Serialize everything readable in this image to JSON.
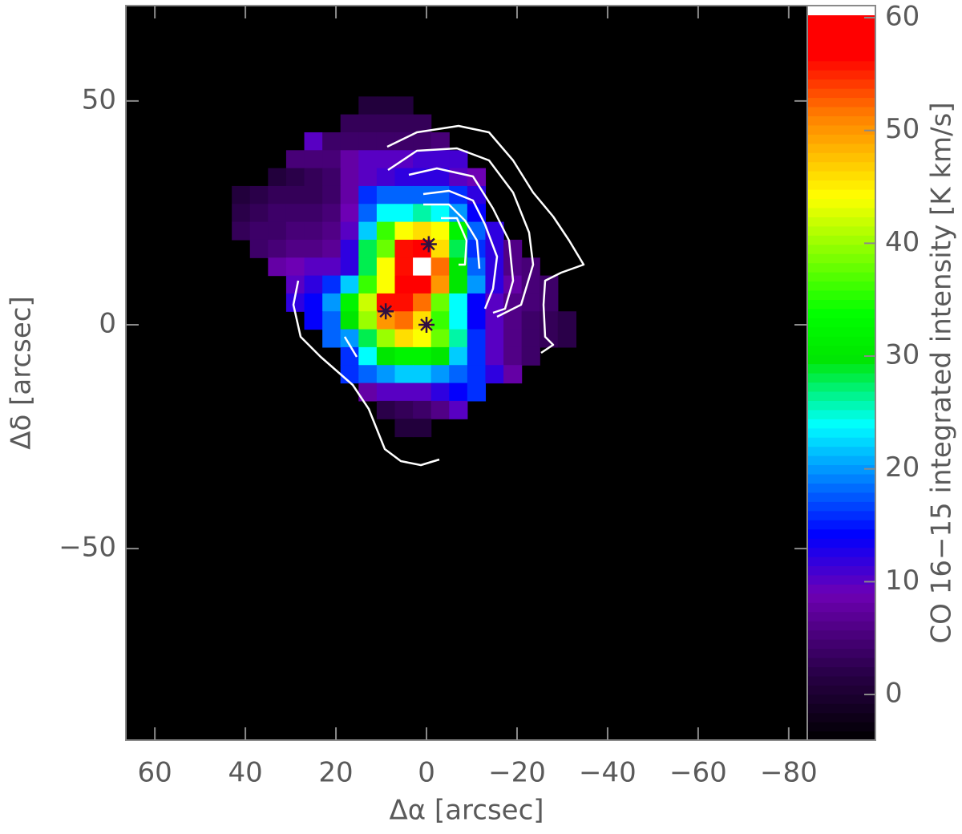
{
  "chart_data": {
    "type": "heatmap",
    "xlabel": "Δα [arcsec]",
    "ylabel": "Δδ [arcsec]",
    "colorbar_label": "CO 16−15 integrated intensity [K km/s]",
    "xlim": [
      66.4,
      -84.1
    ],
    "ylim": [
      -92.8,
      71.3
    ],
    "clim": [
      -4.05,
      61.07
    ],
    "xticks": [
      60,
      40,
      20,
      0,
      {
        "value": -20,
        "label": "−20"
      },
      {
        "value": -40,
        "label": "−40"
      },
      {
        "value": -60,
        "label": "−60"
      },
      {
        "value": -80,
        "label": "−80"
      }
    ],
    "yticks": [
      50,
      0,
      {
        "value": -50,
        "label": "−50"
      }
    ],
    "cticks": [
      0,
      10,
      20,
      30,
      40,
      50,
      60
    ],
    "x": [
      41,
      37,
      33,
      29,
      25,
      21,
      17,
      13,
      9,
      5,
      1,
      -3,
      -7,
      -11,
      -15,
      -19,
      -23,
      -27,
      -31,
      -35
    ],
    "y": [
      49,
      45,
      41,
      37,
      33,
      29,
      25,
      21,
      17,
      13,
      9,
      5,
      1,
      -3,
      -7,
      -11,
      -15,
      -19,
      -23
    ],
    "z": [
      [
        null,
        null,
        null,
        null,
        null,
        null,
        null,
        1,
        1,
        1,
        null,
        null,
        null,
        null,
        null,
        null,
        null,
        null,
        null,
        null
      ],
      [
        null,
        null,
        null,
        null,
        null,
        null,
        3,
        3,
        3,
        3,
        3,
        null,
        null,
        null,
        null,
        null,
        null,
        null,
        null,
        null
      ],
      [
        null,
        null,
        null,
        null,
        10,
        4,
        4,
        4,
        4,
        4,
        4,
        5,
        null,
        null,
        null,
        null,
        null,
        null,
        null,
        null
      ],
      [
        null,
        null,
        null,
        5,
        5,
        5,
        8,
        10,
        10,
        10,
        11,
        11,
        11,
        null,
        null,
        null,
        null,
        null,
        null,
        null
      ],
      [
        null,
        null,
        1,
        2,
        3,
        4,
        8,
        10,
        11,
        12,
        12,
        12,
        10,
        9,
        null,
        null,
        null,
        null,
        null,
        null
      ],
      [
        1,
        2,
        3,
        3,
        3,
        4,
        8,
        16,
        18,
        18,
        18,
        18,
        16,
        12,
        null,
        null,
        null,
        null,
        null,
        null
      ],
      [
        2,
        3,
        4,
        4,
        4,
        5,
        9,
        18,
        24,
        24,
        26,
        24,
        20,
        14,
        null,
        null,
        null,
        null,
        null,
        null
      ],
      [
        3,
        4,
        4,
        5,
        5,
        6,
        10,
        22,
        36,
        44,
        46,
        44,
        32,
        18,
        12,
        null,
        null,
        null,
        null,
        null
      ],
      [
        null,
        4,
        5,
        6,
        6,
        7,
        12,
        28,
        38,
        56,
        58,
        46,
        28,
        16,
        12,
        6,
        null,
        null,
        null,
        null
      ],
      [
        null,
        null,
        8,
        9,
        10,
        10,
        12,
        28,
        44,
        56,
        63,
        52,
        30,
        18,
        12,
        6,
        5,
        null,
        null,
        null
      ],
      [
        null,
        null,
        null,
        10,
        12,
        16,
        22,
        36,
        44,
        58,
        58,
        50,
        30,
        20,
        12,
        8,
        5,
        4,
        null,
        null
      ],
      [
        null,
        null,
        null,
        12,
        14,
        20,
        32,
        42,
        56,
        56,
        52,
        38,
        24,
        14,
        10,
        6,
        5,
        4,
        null,
        null
      ],
      [
        null,
        null,
        null,
        null,
        14,
        18,
        30,
        40,
        50,
        52,
        46,
        36,
        24,
        14,
        10,
        6,
        4,
        3,
        2,
        null
      ],
      [
        null,
        null,
        null,
        null,
        null,
        18,
        20,
        28,
        40,
        46,
        44,
        38,
        26,
        16,
        10,
        6,
        4,
        3,
        2,
        null
      ],
      [
        null,
        null,
        null,
        null,
        null,
        null,
        16,
        24,
        30,
        32,
        32,
        30,
        22,
        16,
        10,
        6,
        4,
        null,
        null,
        null
      ],
      [
        null,
        null,
        null,
        null,
        null,
        null,
        16,
        18,
        20,
        22,
        22,
        20,
        18,
        16,
        12,
        8,
        null,
        null,
        null,
        null
      ],
      [
        null,
        null,
        null,
        null,
        null,
        null,
        null,
        8,
        10,
        10,
        10,
        12,
        14,
        16,
        null,
        null,
        null,
        null,
        null,
        null
      ],
      [
        null,
        null,
        null,
        null,
        null,
        null,
        null,
        null,
        2,
        3,
        4,
        6,
        10,
        null,
        null,
        null,
        null,
        null,
        null,
        null
      ],
      [
        null,
        null,
        null,
        null,
        null,
        null,
        null,
        null,
        null,
        1,
        1,
        null,
        null,
        null,
        null,
        null,
        null,
        null,
        null,
        null
      ]
    ],
    "markers": {
      "x": [
        0,
        9,
        -0.5
      ],
      "y": [
        0,
        3,
        18
      ]
    }
  }
}
